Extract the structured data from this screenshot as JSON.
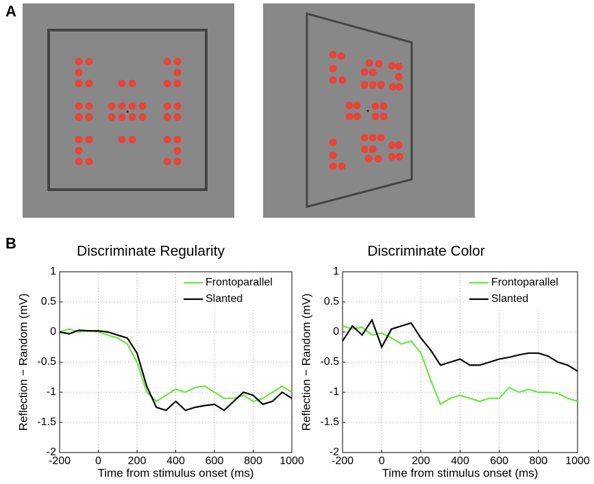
{
  "panel_labels": [
    "A",
    "B"
  ],
  "chart_data": [
    {
      "type": "line",
      "title": "Discriminate Regularity",
      "xlabel": "Time from stimulus onset (ms)",
      "ylabel": "Reflection − Random (mV)",
      "x": [
        -200,
        -150,
        -100,
        -50,
        0,
        50,
        100,
        150,
        200,
        250,
        300,
        350,
        400,
        450,
        500,
        550,
        600,
        650,
        700,
        750,
        800,
        850,
        900,
        950,
        1000
      ],
      "series": [
        {
          "name": "Frontoparallel",
          "color": "#66e83c",
          "values": [
            0,
            0.05,
            0,
            0.02,
            0,
            -0.05,
            -0.1,
            -0.2,
            -0.5,
            -1.0,
            -1.15,
            -1.05,
            -0.95,
            -1.0,
            -0.92,
            -0.9,
            -1.0,
            -1.1,
            -1.1,
            -1.05,
            -1.15,
            -1.1,
            -1.0,
            -0.9,
            -1.0
          ]
        },
        {
          "name": "Slanted",
          "color": "#000000",
          "values": [
            0,
            -0.03,
            0.03,
            0.02,
            0.02,
            0,
            -0.05,
            -0.1,
            -0.35,
            -0.9,
            -1.25,
            -1.3,
            -1.15,
            -1.3,
            -1.25,
            -1.22,
            -1.2,
            -1.3,
            -1.15,
            -1.0,
            -1.05,
            -1.2,
            -1.15,
            -1.0,
            -1.1
          ]
        }
      ],
      "xlim": [
        -200,
        1000
      ],
      "xticks": [
        -200,
        0,
        200,
        400,
        600,
        800,
        1000
      ],
      "ylim": [
        -2,
        1
      ],
      "yticks": [
        -2,
        -1.5,
        -1,
        -0.5,
        0,
        0.5,
        1
      ],
      "grid": true,
      "legend": "upper-right"
    },
    {
      "type": "line",
      "title": "Discriminate Color",
      "xlabel": "Time from stimulus onset (ms)",
      "ylabel": "Reflection − Random (mV)",
      "x": [
        -200,
        -150,
        -100,
        -50,
        0,
        50,
        100,
        150,
        200,
        250,
        300,
        350,
        400,
        450,
        500,
        550,
        600,
        650,
        700,
        750,
        800,
        850,
        900,
        950,
        1000
      ],
      "series": [
        {
          "name": "Frontoparallel",
          "color": "#66e83c",
          "values": [
            0.1,
            0.05,
            0.08,
            -0.05,
            -0.02,
            -0.1,
            -0.2,
            -0.15,
            -0.35,
            -0.8,
            -1.2,
            -1.1,
            -1.05,
            -1.1,
            -1.15,
            -1.1,
            -1.1,
            -0.92,
            -1.0,
            -0.95,
            -1.0,
            -1.0,
            -1.02,
            -1.1,
            -1.15
          ]
        },
        {
          "name": "Slanted",
          "color": "#000000",
          "values": [
            -0.15,
            0.1,
            -0.05,
            0.2,
            -0.25,
            0.05,
            0.1,
            0.15,
            -0.1,
            -0.3,
            -0.55,
            -0.5,
            -0.45,
            -0.55,
            -0.55,
            -0.5,
            -0.45,
            -0.42,
            -0.38,
            -0.35,
            -0.35,
            -0.4,
            -0.5,
            -0.55,
            -0.65
          ]
        }
      ],
      "xlim": [
        -200,
        1000
      ],
      "xticks": [
        -200,
        0,
        200,
        400,
        600,
        800,
        1000
      ],
      "ylim": [
        -2,
        1
      ],
      "yticks": [
        -2,
        -1.5,
        -1,
        -0.5,
        0,
        0.5,
        1
      ],
      "grid": true,
      "legend": "upper-right"
    }
  ]
}
